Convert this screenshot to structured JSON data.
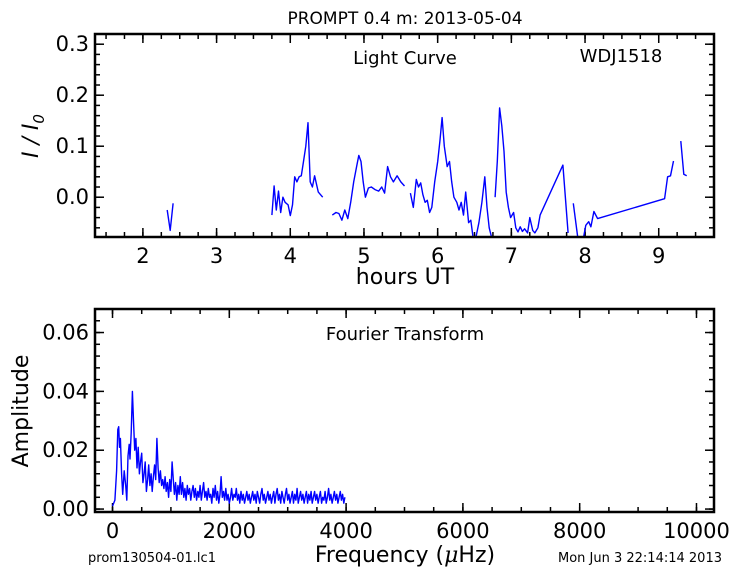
{
  "figure": {
    "title": "PROMPT 0.4 m:  2013-05-04",
    "footer_left": "prom130504-01.lc1",
    "footer_right": "Mon Jun  3 22:14:14 2013"
  },
  "chart_data": [
    {
      "type": "line",
      "title": "Light Curve",
      "annotation": "WDJ1518",
      "xlabel": "hours UT",
      "ylabel": "I / I",
      "ylabel_sub": "0",
      "xlim": [
        1.35,
        9.75
      ],
      "ylim": [
        -0.078,
        0.32
      ],
      "xticks": [
        2,
        3,
        4,
        5,
        6,
        7,
        8,
        9
      ],
      "yticks": [
        0.0,
        0.1,
        0.2,
        0.3
      ],
      "ytick_labels": [
        "0.0",
        "0.1",
        "0.2",
        "0.3"
      ],
      "color": "#0000ff",
      "segments": [
        [
          [
            2.33,
            -0.025
          ],
          [
            2.37,
            -0.065
          ],
          [
            2.41,
            -0.012
          ]
        ],
        [
          [
            3.75,
            -0.035
          ],
          [
            3.78,
            0.022
          ],
          [
            3.81,
            -0.025
          ],
          [
            3.84,
            0.012
          ],
          [
            3.87,
            -0.03
          ],
          [
            3.9,
            0.0
          ],
          [
            3.93,
            -0.01
          ],
          [
            3.97,
            -0.015
          ],
          [
            4.0,
            -0.036
          ],
          [
            4.03,
            -0.015
          ],
          [
            4.06,
            0.04
          ],
          [
            4.09,
            0.03
          ],
          [
            4.12,
            0.04
          ],
          [
            4.15,
            0.042
          ],
          [
            4.18,
            0.07
          ],
          [
            4.21,
            0.1
          ],
          [
            4.24,
            0.146
          ],
          [
            4.27,
            0.03
          ],
          [
            4.3,
            0.02
          ],
          [
            4.33,
            0.042
          ],
          [
            4.38,
            0.01
          ],
          [
            4.44,
            0.0
          ]
        ],
        [
          [
            4.57,
            -0.035
          ],
          [
            4.62,
            -0.03
          ],
          [
            4.66,
            -0.032
          ],
          [
            4.7,
            -0.045
          ],
          [
            4.74,
            -0.025
          ],
          [
            4.78,
            -0.042
          ],
          [
            4.82,
            -0.01
          ],
          [
            4.86,
            0.03
          ],
          [
            4.9,
            0.06
          ],
          [
            4.93,
            0.082
          ],
          [
            4.96,
            0.07
          ],
          [
            4.99,
            0.03
          ],
          [
            5.02,
            0.0
          ],
          [
            5.06,
            0.018
          ],
          [
            5.1,
            0.02
          ],
          [
            5.15,
            0.015
          ],
          [
            5.2,
            0.012
          ],
          [
            5.24,
            0.02
          ],
          [
            5.28,
            0.008
          ],
          [
            5.32,
            0.06
          ],
          [
            5.36,
            0.04
          ],
          [
            5.4,
            0.03
          ],
          [
            5.45,
            0.042
          ],
          [
            5.5,
            0.03
          ],
          [
            5.55,
            0.022
          ]
        ],
        [
          [
            5.63,
            0.008
          ],
          [
            5.67,
            -0.02
          ],
          [
            5.71,
            0.035
          ],
          [
            5.74,
            0.02
          ],
          [
            5.77,
            0.028
          ],
          [
            5.8,
            0.005
          ],
          [
            5.83,
            -0.01
          ],
          [
            5.86,
            -0.006
          ],
          [
            5.89,
            -0.03
          ],
          [
            5.92,
            -0.02
          ],
          [
            5.96,
            0.03
          ],
          [
            6.0,
            0.07
          ],
          [
            6.03,
            0.11
          ],
          [
            6.06,
            0.156
          ],
          [
            6.09,
            0.1
          ],
          [
            6.13,
            0.06
          ],
          [
            6.16,
            0.07
          ],
          [
            6.19,
            0.03
          ],
          [
            6.22,
            0.0
          ],
          [
            6.26,
            -0.01
          ],
          [
            6.29,
            -0.025
          ],
          [
            6.32,
            -0.01
          ],
          [
            6.35,
            -0.035
          ],
          [
            6.38,
            0.01
          ],
          [
            6.42,
            -0.05
          ],
          [
            6.45,
            -0.045
          ],
          [
            6.48,
            -0.078
          ]
        ],
        [
          [
            6.52,
            -0.078
          ],
          [
            6.56,
            -0.05
          ],
          [
            6.6,
            -0.01
          ],
          [
            6.64,
            0.04
          ],
          [
            6.67,
            -0.02
          ],
          [
            6.7,
            -0.06
          ],
          [
            6.73,
            -0.078
          ]
        ],
        [
          [
            6.78,
            0.0
          ],
          [
            6.81,
            0.07
          ],
          [
            6.84,
            0.175
          ],
          [
            6.87,
            0.14
          ],
          [
            6.9,
            0.09
          ],
          [
            6.93,
            0.01
          ],
          [
            6.96,
            -0.02
          ],
          [
            6.99,
            -0.04
          ],
          [
            7.03,
            -0.03
          ],
          [
            7.06,
            -0.06
          ],
          [
            7.09,
            -0.068
          ],
          [
            7.12,
            -0.058
          ],
          [
            7.15,
            -0.067
          ],
          [
            7.18,
            -0.062
          ],
          [
            7.22,
            -0.07
          ],
          [
            7.25,
            -0.04
          ],
          [
            7.29,
            -0.065
          ],
          [
            7.32,
            -0.07
          ],
          [
            7.36,
            -0.06
          ],
          [
            7.39,
            -0.035
          ],
          [
            7.7,
            0.063
          ],
          [
            7.77,
            -0.07
          ]
        ],
        [
          [
            7.84,
            -0.012
          ],
          [
            7.9,
            -0.078
          ]
        ],
        [
          [
            7.98,
            -0.078
          ],
          [
            8.01,
            -0.055
          ],
          [
            8.05,
            -0.048
          ],
          [
            8.08,
            -0.058
          ],
          [
            8.12,
            -0.028
          ],
          [
            8.17,
            -0.042
          ],
          [
            9.08,
            -0.003
          ],
          [
            9.12,
            0.04
          ],
          [
            9.16,
            0.042
          ],
          [
            9.2,
            0.071
          ]
        ],
        [
          [
            9.3,
            0.11
          ],
          [
            9.34,
            0.045
          ],
          [
            9.38,
            0.042
          ]
        ]
      ]
    },
    {
      "type": "line",
      "title": "Fourier Transform",
      "xlabel": "Frequency (",
      "xlabel_symbol": "μ",
      "xlabel_unit": "Hz)",
      "ylabel": "Amplitude",
      "xlim": [
        -300,
        10300
      ],
      "ylim": [
        -0.001,
        0.068
      ],
      "xticks": [
        0,
        2000,
        4000,
        6000,
        8000,
        10000
      ],
      "yticks": [
        0.0,
        0.02,
        0.04,
        0.06
      ],
      "ytick_labels": [
        "0.00",
        "0.02",
        "0.04",
        "0.06"
      ],
      "color": "#0000ff",
      "points": [
        [
          0,
          0.001
        ],
        [
          40,
          0.003
        ],
        [
          70,
          0.013
        ],
        [
          90,
          0.027
        ],
        [
          105,
          0.028
        ],
        [
          120,
          0.021
        ],
        [
          135,
          0.024
        ],
        [
          155,
          0.012
        ],
        [
          175,
          0.005
        ],
        [
          200,
          0.013
        ],
        [
          225,
          0.008
        ],
        [
          245,
          0.003
        ],
        [
          265,
          0.018
        ],
        [
          285,
          0.022
        ],
        [
          300,
          0.017
        ],
        [
          320,
          0.026
        ],
        [
          340,
          0.04
        ],
        [
          360,
          0.03
        ],
        [
          380,
          0.02
        ],
        [
          400,
          0.024
        ],
        [
          420,
          0.014
        ],
        [
          440,
          0.021
        ],
        [
          460,
          0.012
        ],
        [
          480,
          0.016
        ],
        [
          500,
          0.019
        ],
        [
          520,
          0.009
        ],
        [
          540,
          0.012
        ],
        [
          560,
          0.016
        ],
        [
          580,
          0.006
        ],
        [
          600,
          0.01
        ],
        [
          620,
          0.015
        ],
        [
          640,
          0.008
        ],
        [
          660,
          0.012
        ],
        [
          680,
          0.006
        ],
        [
          700,
          0.011
        ],
        [
          720,
          0.015
        ],
        [
          740,
          0.01
        ],
        [
          760,
          0.024
        ],
        [
          780,
          0.014
        ],
        [
          800,
          0.009
        ],
        [
          820,
          0.013
        ],
        [
          840,
          0.008
        ],
        [
          860,
          0.01
        ],
        [
          880,
          0.007
        ],
        [
          900,
          0.011
        ],
        [
          920,
          0.006
        ],
        [
          940,
          0.009
        ],
        [
          960,
          0.004
        ],
        [
          980,
          0.01
        ],
        [
          1000,
          0.006
        ],
        [
          1020,
          0.016
        ],
        [
          1040,
          0.01
        ],
        [
          1060,
          0.005
        ],
        [
          1080,
          0.009
        ],
        [
          1100,
          0.003
        ],
        [
          1120,
          0.008
        ],
        [
          1140,
          0.005
        ],
        [
          1160,
          0.011
        ],
        [
          1180,
          0.005
        ],
        [
          1200,
          0.009
        ],
        [
          1220,
          0.004
        ],
        [
          1240,
          0.007
        ],
        [
          1260,
          0.003
        ],
        [
          1280,
          0.008
        ],
        [
          1300,
          0.005
        ],
        [
          1320,
          0.007
        ],
        [
          1340,
          0.003
        ],
        [
          1360,
          0.006
        ],
        [
          1380,
          0.008
        ],
        [
          1400,
          0.004
        ],
        [
          1420,
          0.007
        ],
        [
          1440,
          0.003
        ],
        [
          1460,
          0.006
        ],
        [
          1480,
          0.004
        ],
        [
          1500,
          0.008
        ],
        [
          1520,
          0.003
        ],
        [
          1540,
          0.006
        ],
        [
          1560,
          0.009
        ],
        [
          1580,
          0.004
        ],
        [
          1600,
          0.006
        ],
        [
          1620,
          0.003
        ],
        [
          1640,
          0.007
        ],
        [
          1660,
          0.004
        ],
        [
          1680,
          0.005
        ],
        [
          1700,
          0.002
        ],
        [
          1720,
          0.007
        ],
        [
          1740,
          0.004
        ],
        [
          1760,
          0.008
        ],
        [
          1780,
          0.003
        ],
        [
          1800,
          0.006
        ],
        [
          1820,
          0.002
        ],
        [
          1840,
          0.005
        ],
        [
          1860,
          0.011
        ],
        [
          1880,
          0.004
        ],
        [
          1900,
          0.006
        ],
        [
          1920,
          0.003
        ],
        [
          1940,
          0.007
        ],
        [
          1960,
          0.003
        ],
        [
          1980,
          0.005
        ],
        [
          2000,
          0.002
        ],
        [
          2020,
          0.004
        ],
        [
          2040,
          0.007
        ],
        [
          2060,
          0.003
        ],
        [
          2080,
          0.005
        ],
        [
          2100,
          0.004
        ],
        [
          2120,
          0.007
        ],
        [
          2140,
          0.003
        ],
        [
          2160,
          0.005
        ],
        [
          2180,
          0.002
        ],
        [
          2200,
          0.006
        ],
        [
          2220,
          0.003
        ],
        [
          2240,
          0.005
        ],
        [
          2260,
          0.002
        ],
        [
          2280,
          0.004
        ],
        [
          2300,
          0.006
        ],
        [
          2320,
          0.003
        ],
        [
          2340,
          0.005
        ],
        [
          2360,
          0.002
        ],
        [
          2380,
          0.004
        ],
        [
          2400,
          0.006
        ],
        [
          2420,
          0.003
        ],
        [
          2440,
          0.005
        ],
        [
          2460,
          0.002
        ],
        [
          2480,
          0.006
        ],
        [
          2500,
          0.004
        ],
        [
          2520,
          0.002
        ],
        [
          2540,
          0.005
        ],
        [
          2560,
          0.007
        ],
        [
          2580,
          0.003
        ],
        [
          2600,
          0.005
        ],
        [
          2620,
          0.002
        ],
        [
          2640,
          0.004
        ],
        [
          2660,
          0.006
        ],
        [
          2680,
          0.003
        ],
        [
          2700,
          0.005
        ],
        [
          2720,
          0.002
        ],
        [
          2740,
          0.004
        ],
        [
          2760,
          0.006
        ],
        [
          2780,
          0.002
        ],
        [
          2800,
          0.005
        ],
        [
          2820,
          0.007
        ],
        [
          2840,
          0.003
        ],
        [
          2860,
          0.005
        ],
        [
          2880,
          0.002
        ],
        [
          2900,
          0.006
        ],
        [
          2920,
          0.004
        ],
        [
          2940,
          0.002
        ],
        [
          2960,
          0.005
        ],
        [
          2980,
          0.007
        ],
        [
          3000,
          0.003
        ],
        [
          3020,
          0.005
        ],
        [
          3040,
          0.002
        ],
        [
          3060,
          0.004
        ],
        [
          3080,
          0.006
        ],
        [
          3100,
          0.002
        ],
        [
          3120,
          0.005
        ],
        [
          3140,
          0.003
        ],
        [
          3160,
          0.007
        ],
        [
          3180,
          0.002
        ],
        [
          3200,
          0.004
        ],
        [
          3220,
          0.006
        ],
        [
          3240,
          0.003
        ],
        [
          3260,
          0.005
        ],
        [
          3280,
          0.002
        ],
        [
          3300,
          0.004
        ],
        [
          3320,
          0.006
        ],
        [
          3340,
          0.002
        ],
        [
          3360,
          0.005
        ],
        [
          3380,
          0.003
        ],
        [
          3400,
          0.006
        ],
        [
          3420,
          0.002
        ],
        [
          3440,
          0.004
        ],
        [
          3460,
          0.006
        ],
        [
          3480,
          0.003
        ],
        [
          3500,
          0.005
        ],
        [
          3520,
          0.002
        ],
        [
          3540,
          0.004
        ],
        [
          3560,
          0.006
        ],
        [
          3580,
          0.002
        ],
        [
          3600,
          0.004
        ],
        [
          3620,
          0.003
        ],
        [
          3640,
          0.006
        ],
        [
          3660,
          0.002
        ],
        [
          3680,
          0.004
        ],
        [
          3700,
          0.007
        ],
        [
          3720,
          0.003
        ],
        [
          3740,
          0.005
        ],
        [
          3760,
          0.002
        ],
        [
          3780,
          0.004
        ],
        [
          3800,
          0.006
        ],
        [
          3820,
          0.003
        ],
        [
          3840,
          0.005
        ],
        [
          3860,
          0.002
        ],
        [
          3880,
          0.004
        ],
        [
          3900,
          0.006
        ],
        [
          3920,
          0.003
        ],
        [
          3940,
          0.005
        ],
        [
          3960,
          0.002
        ],
        [
          3980,
          0.004
        ]
      ]
    }
  ]
}
